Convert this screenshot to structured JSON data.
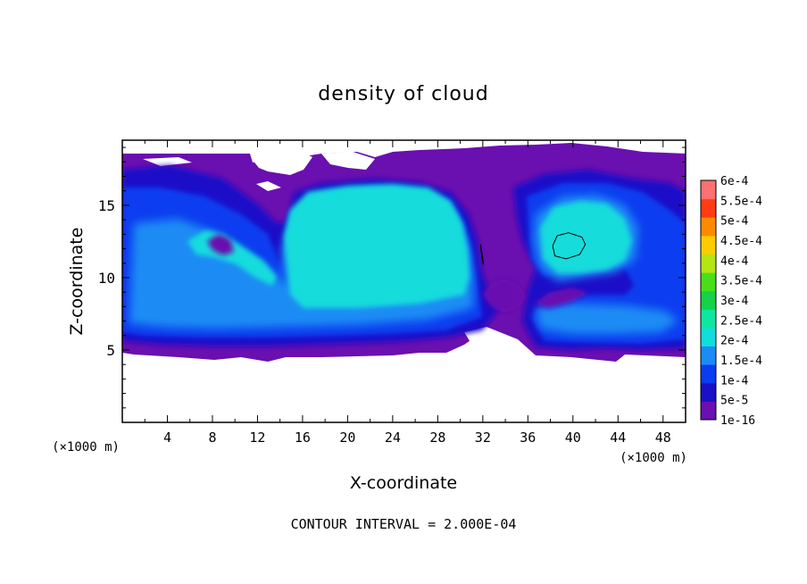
{
  "chart_data": {
    "type": "heatmap",
    "title": "density of cloud",
    "xlabel": "X-coordinate",
    "ylabel": "Z-coordinate",
    "x_unit_label": "(×1000 m)",
    "y_unit_label": "(×1000 m)",
    "footer": "CONTOUR INTERVAL = 2.000E-04",
    "xlim": [
      0,
      50
    ],
    "ylim": [
      0,
      19.5
    ],
    "x_ticks": [
      4,
      8,
      12,
      16,
      20,
      24,
      28,
      32,
      36,
      40,
      44,
      48
    ],
    "y_ticks": [
      5,
      10,
      15
    ],
    "cloud_base_z": 5,
    "cloud_top_z": 19,
    "colorbar": {
      "labels": [
        "1e-16",
        "5e-5",
        "1e-4",
        "1.5e-4",
        "2e-4",
        "2.5e-4",
        "3e-4",
        "3.5e-4",
        "4e-4",
        "4.5e-4",
        "5e-4",
        "5.5e-4",
        "6e-4"
      ],
      "colors": [
        "#6a0fb0",
        "#1a10c8",
        "#0b3cf0",
        "#1a8cf4",
        "#12dcdc",
        "#0fe6a0",
        "#14d24a",
        "#4ade1a",
        "#b4e614",
        "#ffcc00",
        "#ff8a00",
        "#ff3c14",
        "#ff7070"
      ]
    },
    "cloud_regions": [
      {
        "x": [
          0,
          50
        ],
        "z": [
          5,
          19
        ],
        "level": "1e-16"
      },
      {
        "x": [
          0,
          14
        ],
        "z": [
          5,
          18
        ],
        "level": "5e-5"
      },
      {
        "x": [
          1,
          12
        ],
        "z": [
          5.5,
          12
        ],
        "level": "1.5e-4"
      },
      {
        "x": [
          14.5,
          31
        ],
        "z": [
          7,
          16.7
        ],
        "level": "2e-4"
      },
      {
        "x": [
          35,
          43
        ],
        "z": [
          8.5,
          15
        ],
        "level": "2e-4"
      },
      {
        "x": [
          36,
          50
        ],
        "z": [
          5,
          9
        ],
        "level": "5e-5"
      }
    ],
    "contour_lines": [
      {
        "name": "2e-4 contour",
        "points": [
          [
            38.2,
            12.2
          ],
          [
            38.6,
            12.9
          ],
          [
            39.6,
            13.1
          ],
          [
            40.8,
            12.8
          ],
          [
            41.1,
            12.3
          ],
          [
            40.6,
            11.6
          ],
          [
            39.4,
            11.3
          ],
          [
            38.4,
            11.5
          ],
          [
            38.2,
            12.2
          ]
        ]
      },
      {
        "name": "2e-4 contour",
        "points": [
          [
            31.8,
            12.3
          ],
          [
            31.95,
            11.6
          ],
          [
            32.05,
            10.9
          ],
          [
            31.9,
            11.5
          ],
          [
            31.8,
            12.3
          ]
        ]
      }
    ]
  }
}
